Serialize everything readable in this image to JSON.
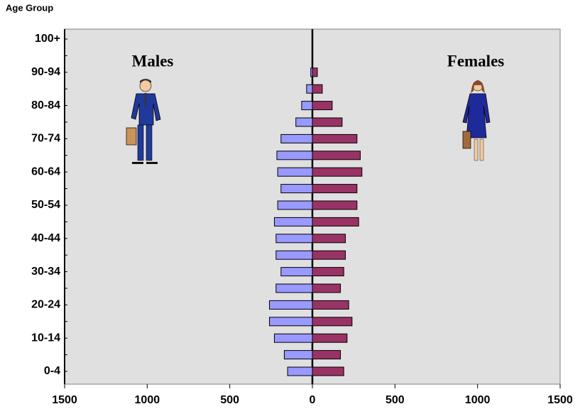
{
  "chart_data": {
    "type": "pyramid",
    "title": "Age Group",
    "categories": [
      "0-4",
      null,
      "10-14",
      null,
      "20-24",
      null,
      "30-34",
      null,
      "40-44",
      null,
      "50-54",
      null,
      "60-64",
      null,
      "70-74",
      null,
      "80-84",
      null,
      "90-94",
      null,
      "100+"
    ],
    "series": [
      {
        "name": "Males",
        "color": "#9999ff",
        "values": [
          -150,
          -170,
          -230,
          -260,
          -260,
          -220,
          -190,
          -220,
          -220,
          -230,
          -210,
          -190,
          -210,
          -215,
          -190,
          -100,
          -65,
          -35,
          -10,
          0,
          0
        ]
      },
      {
        "name": "Females",
        "color": "#993366",
        "values": [
          190,
          170,
          210,
          240,
          220,
          170,
          190,
          200,
          200,
          280,
          270,
          270,
          300,
          290,
          270,
          180,
          120,
          60,
          30,
          0,
          0
        ]
      }
    ],
    "xlim": [
      -1500,
      1500
    ],
    "xticks": [
      {
        "value": -1500,
        "label": "1500"
      },
      {
        "value": -1000,
        "label": "1000"
      },
      {
        "value": -500,
        "label": "500"
      },
      0,
      500,
      1000,
      1500
    ],
    "background": "#e0e0e0"
  }
}
